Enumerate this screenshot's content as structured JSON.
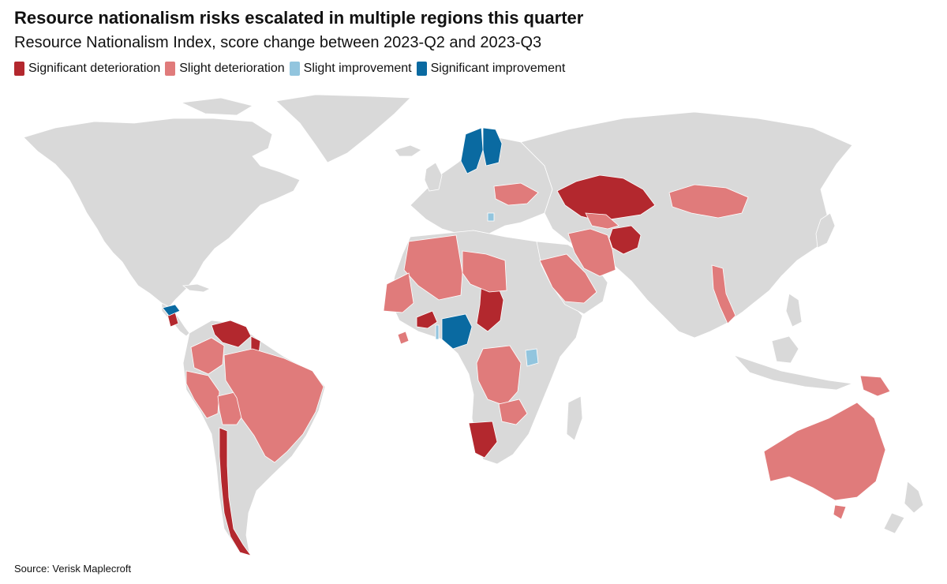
{
  "header": {
    "title": "Resource nationalism risks escalated in multiple regions this quarter",
    "subtitle": "Resource Nationalism Index, score change between 2023-Q2 and 2023-Q3"
  },
  "legend": [
    {
      "key": "sigdet",
      "label": "Significant deterioration",
      "color": "#b3282e"
    },
    {
      "key": "slidet",
      "label": "Slight deterioration",
      "color": "#e07b7b"
    },
    {
      "key": "sliimp",
      "label": "Slight improvement",
      "color": "#92c5de"
    },
    {
      "key": "sigimp",
      "label": "Significant improvement",
      "color": "#0a6aa1"
    }
  ],
  "map": {
    "no_data_color": "#d9d9d9",
    "countries": [
      {
        "name": "Kazakhstan",
        "category": "sigdet"
      },
      {
        "name": "Afghanistan",
        "category": "sigdet"
      },
      {
        "name": "Chad",
        "category": "sigdet"
      },
      {
        "name": "Burkina Faso",
        "category": "sigdet"
      },
      {
        "name": "Namibia",
        "category": "sigdet"
      },
      {
        "name": "Venezuela",
        "category": "sigdet"
      },
      {
        "name": "Chile",
        "category": "sigdet"
      },
      {
        "name": "Guatemala",
        "category": "sigdet"
      },
      {
        "name": "Guyana",
        "category": "sigdet"
      },
      {
        "name": "Mongolia",
        "category": "slidet"
      },
      {
        "name": "Iran",
        "category": "slidet"
      },
      {
        "name": "Saudi Arabia",
        "category": "slidet"
      },
      {
        "name": "Algeria",
        "category": "slidet"
      },
      {
        "name": "Libya",
        "category": "slidet"
      },
      {
        "name": "Mauritania",
        "category": "slidet"
      },
      {
        "name": "Ukraine",
        "category": "slidet"
      },
      {
        "name": "Myanmar",
        "category": "slidet"
      },
      {
        "name": "Papua New Guinea",
        "category": "slidet"
      },
      {
        "name": "Australia",
        "category": "slidet"
      },
      {
        "name": "Brazil",
        "category": "slidet"
      },
      {
        "name": "Peru",
        "category": "slidet"
      },
      {
        "name": "Bolivia",
        "category": "slidet"
      },
      {
        "name": "Colombia",
        "category": "slidet"
      },
      {
        "name": "DR Congo",
        "category": "slidet"
      },
      {
        "name": "Zambia",
        "category": "slidet"
      },
      {
        "name": "Uzbekistan",
        "category": "slidet"
      },
      {
        "name": "Sierra Leone",
        "category": "slidet"
      },
      {
        "name": "Nigeria",
        "category": "sigimp"
      },
      {
        "name": "Sweden",
        "category": "sigimp"
      },
      {
        "name": "Finland",
        "category": "sigimp"
      },
      {
        "name": "Honduras",
        "category": "sigimp"
      },
      {
        "name": "Uganda",
        "category": "sliimp"
      },
      {
        "name": "Serbia",
        "category": "sliimp"
      },
      {
        "name": "Togo",
        "category": "sliimp"
      }
    ]
  },
  "footer": {
    "source": "Source: Verisk Maplecroft"
  }
}
